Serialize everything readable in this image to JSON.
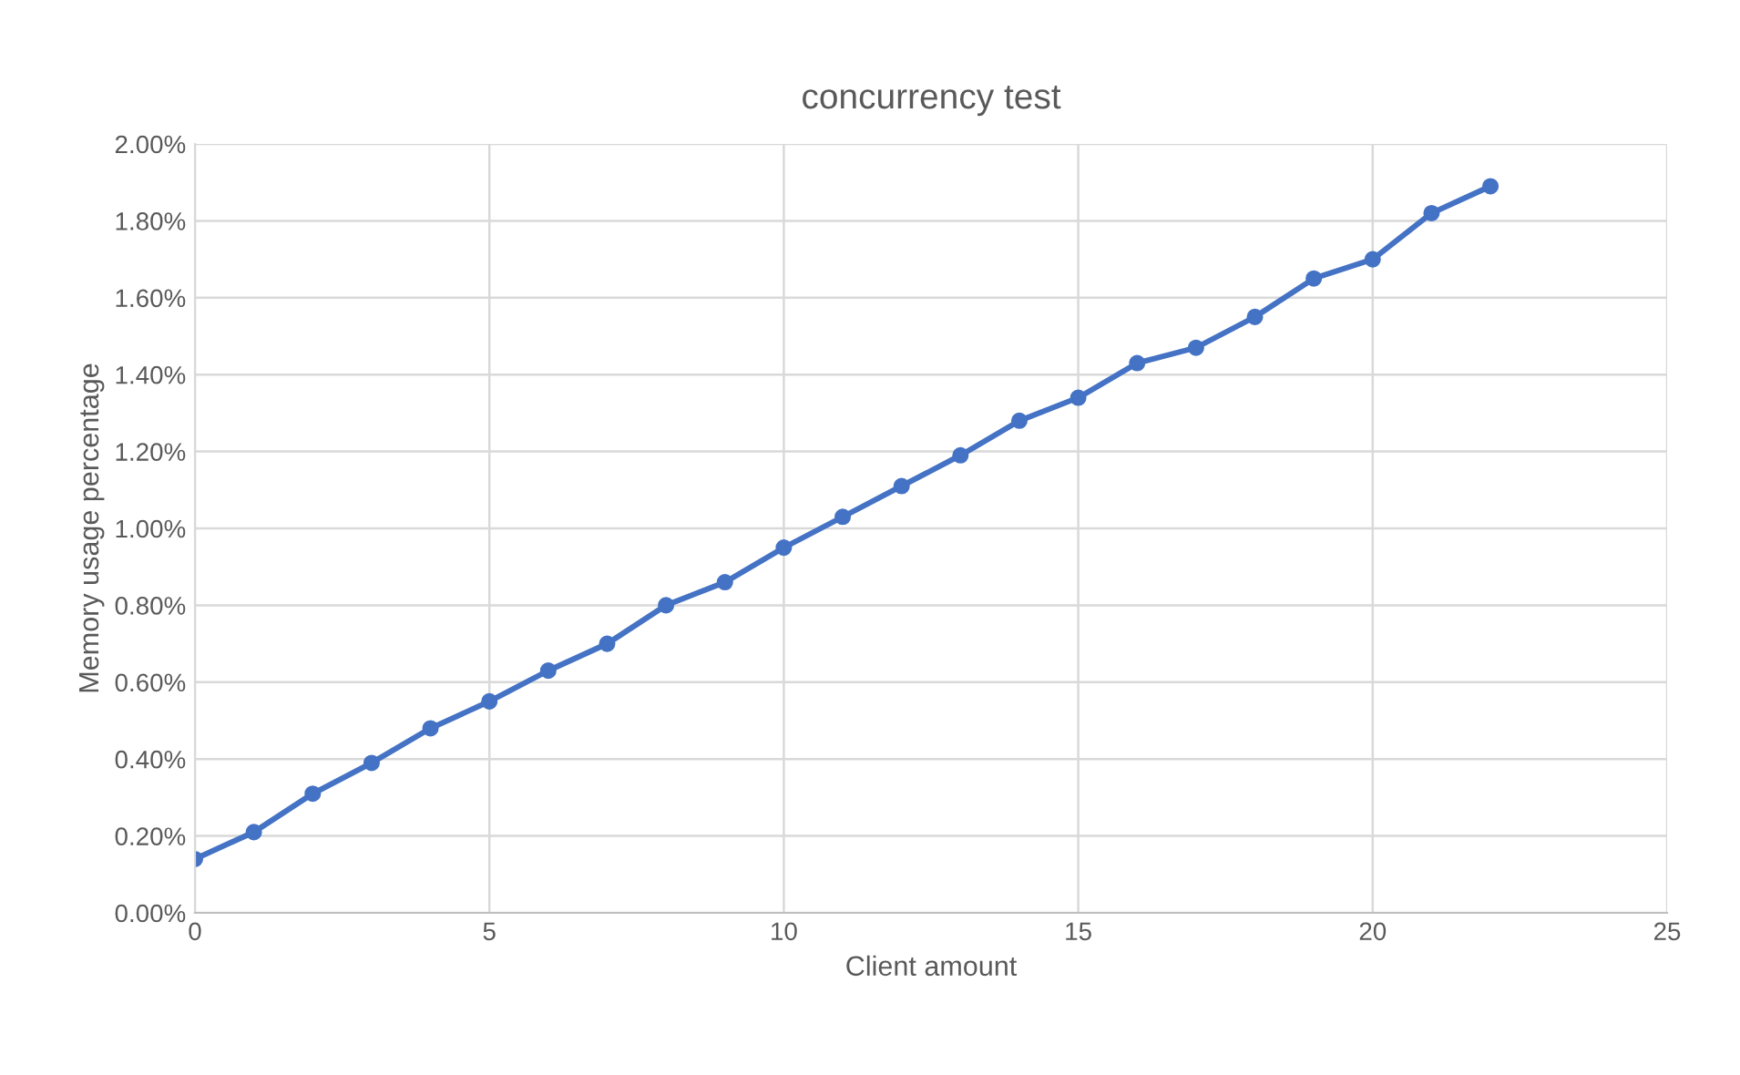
{
  "chart_data": {
    "type": "line",
    "title": "concurrency test",
    "xlabel": "Client amount",
    "ylabel": "Memory usage percentage",
    "x": [
      0,
      1,
      2,
      3,
      4,
      5,
      6,
      7,
      8,
      9,
      10,
      11,
      12,
      13,
      14,
      15,
      16,
      17,
      18,
      19,
      20,
      21,
      22
    ],
    "series": [
      {
        "color": "#4472c4",
        "values": [
          0.14,
          0.21,
          0.31,
          0.39,
          0.48,
          0.55,
          0.63,
          0.7,
          0.8,
          0.86,
          0.95,
          1.03,
          1.11,
          1.19,
          1.28,
          1.34,
          1.43,
          1.47,
          1.55,
          1.65,
          1.7,
          1.82,
          1.89
        ]
      }
    ],
    "xlim": [
      0,
      25
    ],
    "xticks": [
      0,
      5,
      10,
      15,
      20,
      25
    ],
    "ylim": [
      0,
      2
    ],
    "yticks": [
      {
        "value": 0,
        "label": "0.00%"
      },
      {
        "value": 0.2,
        "label": "0.20%"
      },
      {
        "value": 0.4,
        "label": "0.40%"
      },
      {
        "value": 0.6,
        "label": "0.60%"
      },
      {
        "value": 0.8,
        "label": "0.80%"
      },
      {
        "value": 1.0,
        "label": "1.00%"
      },
      {
        "value": 1.2,
        "label": "1.20%"
      },
      {
        "value": 1.4,
        "label": "1.40%"
      },
      {
        "value": 1.6,
        "label": "1.60%"
      },
      {
        "value": 1.8,
        "label": "1.80%"
      },
      {
        "value": 2.0,
        "label": "2.00%"
      }
    ],
    "grid": true,
    "marker": "circle",
    "line_style": "solid"
  }
}
